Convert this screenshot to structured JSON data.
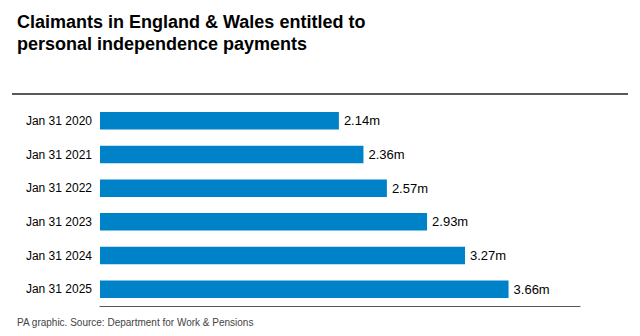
{
  "chart_data": {
    "type": "bar",
    "orientation": "horizontal",
    "title": "Claimants in England & Wales entitled to\npersonal independence payments",
    "caption": "PA graphic. Source: Department for Work & Pensions",
    "categories": [
      "Jan 31 2020",
      "Jan 31 2021",
      "Jan 31 2022",
      "Jan 31 2023",
      "Jan 31 2024",
      "Jan 31 2025"
    ],
    "values": [
      2.14,
      2.36,
      2.57,
      2.93,
      3.27,
      3.66
    ],
    "value_labels": [
      "2.14m",
      "2.36m",
      "2.57m",
      "2.93m",
      "3.27m",
      "3.66m"
    ],
    "data_labels": true,
    "color": "#0082C8",
    "xlim": [
      0,
      4.3
    ],
    "tick_labels": "y",
    "grid": false
  }
}
